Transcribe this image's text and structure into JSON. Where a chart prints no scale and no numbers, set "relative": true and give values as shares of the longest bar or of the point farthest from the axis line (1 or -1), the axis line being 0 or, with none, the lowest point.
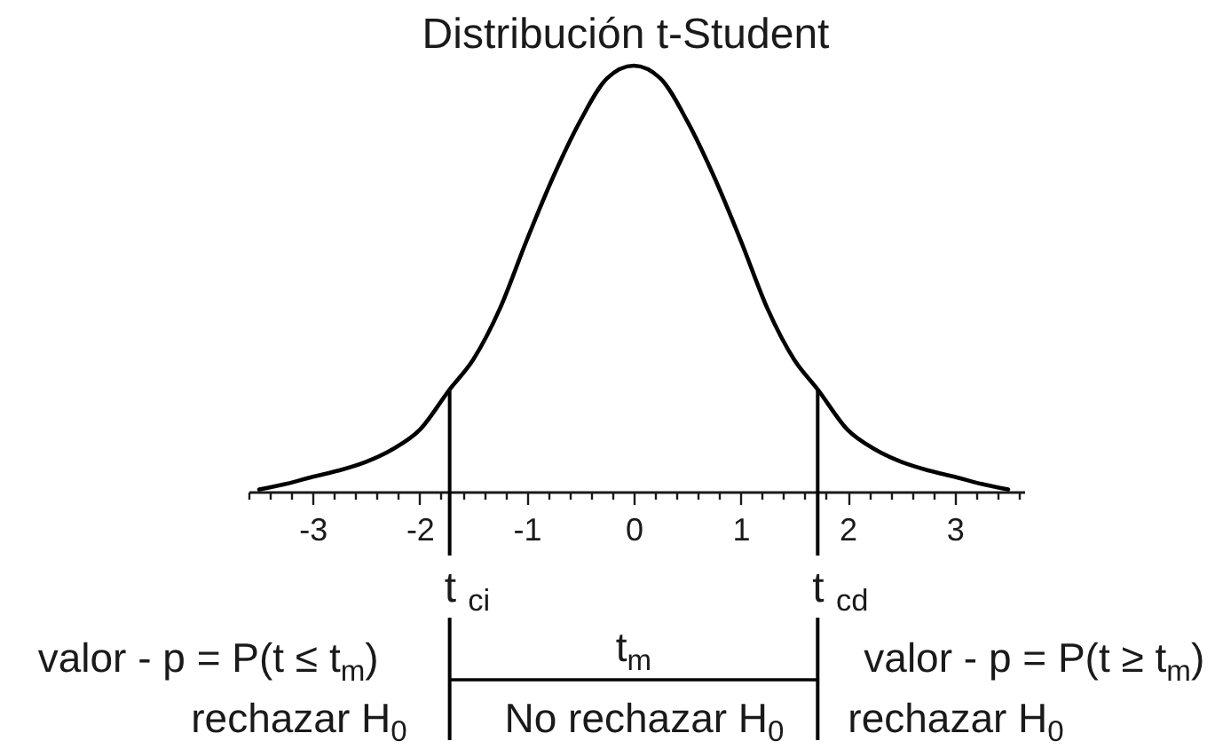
{
  "chart_data": {
    "type": "line",
    "title": "Distribución t-Student",
    "relative": true,
    "x": [
      -3.5,
      -3.25,
      -3,
      -2.75,
      -2.5,
      -2.25,
      -2,
      -1.72,
      -1.5,
      -1.25,
      -1,
      -0.75,
      -0.5,
      -0.25,
      0,
      0.25,
      0.5,
      0.75,
      1,
      1.25,
      1.5,
      1.72,
      2,
      2.25,
      2.5,
      2.75,
      3,
      3.25,
      3.5
    ],
    "series": [
      {
        "color": "#000000",
        "values": [
          0.005,
          0.018,
          0.035,
          0.05,
          0.07,
          0.1,
          0.145,
          0.24,
          0.31,
          0.43,
          0.59,
          0.74,
          0.87,
          0.97,
          1,
          0.97,
          0.87,
          0.74,
          0.59,
          0.43,
          0.31,
          0.24,
          0.145,
          0.1,
          0.07,
          0.05,
          0.035,
          0.018,
          0.005
        ]
      }
    ],
    "xlim": [
      -3.6,
      3.65
    ],
    "xticks": [
      {
        "value": -3.6,
        "label": null
      },
      {
        "value": -3.4,
        "label": null
      },
      {
        "value": -3.2,
        "label": null
      },
      -3,
      {
        "value": -2.8,
        "label": null
      },
      {
        "value": -2.6,
        "label": null
      },
      {
        "value": -2.4,
        "label": null
      },
      {
        "value": -2.2,
        "label": null
      },
      -2,
      {
        "value": -1.8,
        "label": null
      },
      {
        "value": -1.6,
        "label": null
      },
      {
        "value": -1.4,
        "label": null
      },
      {
        "value": -1.2,
        "label": null
      },
      -1,
      {
        "value": -0.8,
        "label": null
      },
      {
        "value": -0.6,
        "label": null
      },
      {
        "value": -0.4,
        "label": null
      },
      {
        "value": -0.2,
        "label": null
      },
      0,
      {
        "value": 0.2,
        "label": null
      },
      {
        "value": 0.4,
        "label": null
      },
      {
        "value": 0.6,
        "label": null
      },
      {
        "value": 0.8,
        "label": null
      },
      1,
      {
        "value": 1.2,
        "label": null
      },
      {
        "value": 1.4,
        "label": null
      },
      {
        "value": 1.6,
        "label": null
      },
      {
        "value": 1.8,
        "label": null
      },
      2,
      {
        "value": 2.2,
        "label": null
      },
      {
        "value": 2.4,
        "label": null
      },
      {
        "value": 2.6,
        "label": null
      },
      {
        "value": 2.8,
        "label": null
      },
      3,
      {
        "value": 3.2,
        "label": null
      },
      {
        "value": 3.4,
        "label": null
      },
      {
        "value": 3.6,
        "label": null
      }
    ],
    "ref_lines": [
      {
        "axis": "x",
        "value": -1.72,
        "label": "t $_{ci}$",
        "color": "#000000"
      },
      {
        "axis": "x",
        "value": 1.72,
        "label": "t $_{cd}$",
        "color": "#000000"
      }
    ],
    "annotations": [
      "valor - p = P(t ≤ t$_{m}$)",
      "rechazar H$_{0}$",
      "t$_{m}$",
      "No rechazar H$_{0}$",
      "valor - p = P(t ≥ t$_{m}$)",
      "rechazar H$_{0}$"
    ]
  }
}
